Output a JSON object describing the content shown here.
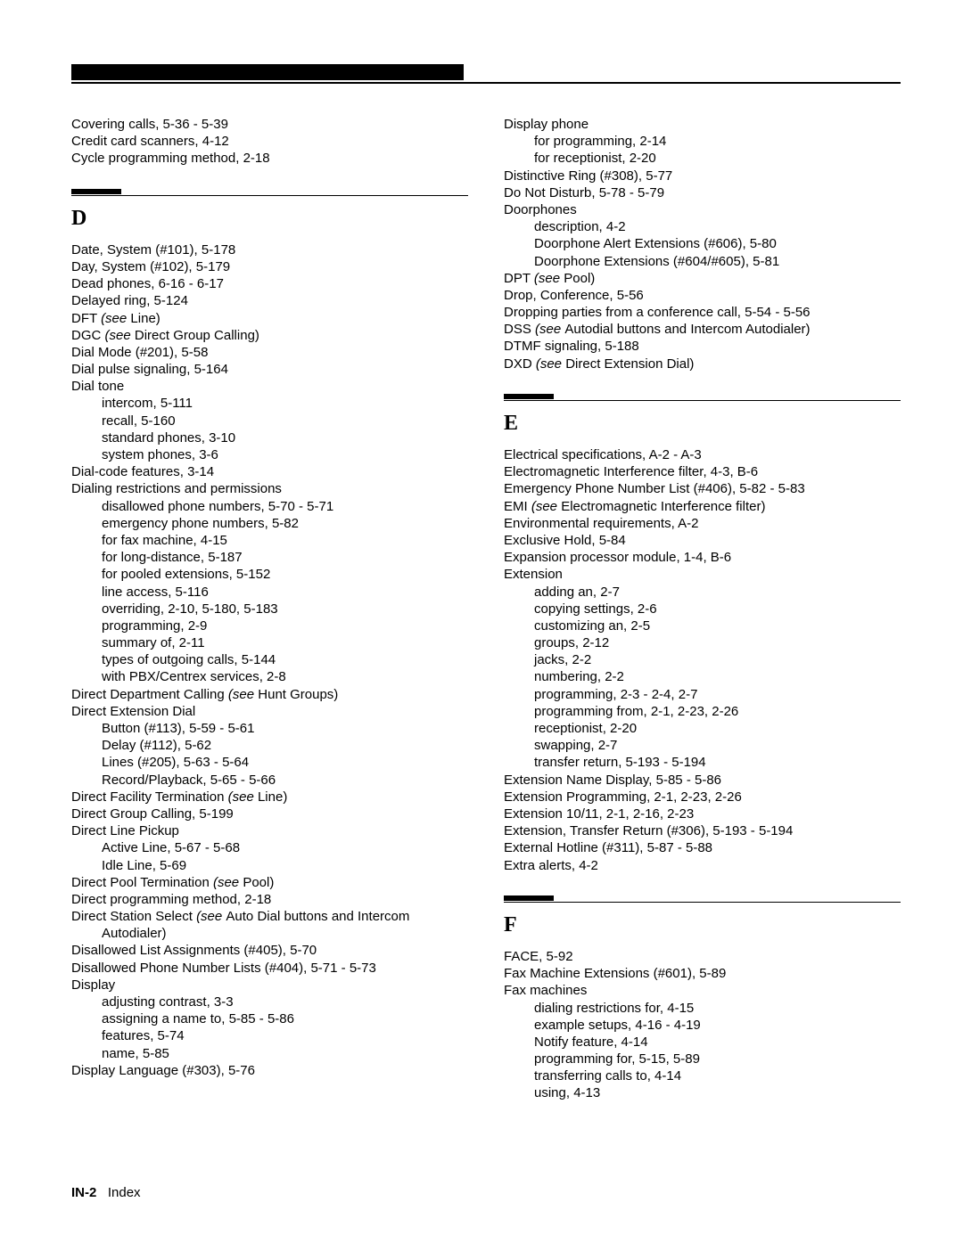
{
  "left": {
    "intro": [
      "Covering calls, 5-36 - 5-39",
      "Credit card scanners, 4-12",
      "Cycle programming method, 2-18"
    ],
    "section_letter": "D",
    "entries": [
      {
        "t": "Date, System (#101), 5-178"
      },
      {
        "t": "Day, System (#102), 5-179"
      },
      {
        "t": "Dead phones, 6-16 - 6-17"
      },
      {
        "t": "Delayed ring, 5-124"
      },
      {
        "t": "DFT ",
        "i": "(see ",
        "after": "Line)"
      },
      {
        "t": "DGC ",
        "i": "(see ",
        "after": "Direct Group Calling)"
      },
      {
        "t": "Dial Mode (#201), 5-58"
      },
      {
        "t": "Dial pulse signaling, 5-164"
      },
      {
        "t": "Dial tone"
      },
      {
        "s": "intercom, 5-111"
      },
      {
        "s": "recall, 5-160"
      },
      {
        "s": "standard phones, 3-10"
      },
      {
        "s": "system phones, 3-6"
      },
      {
        "t": "Dial-code features, 3-14"
      },
      {
        "t": "Dialing restrictions and permissions"
      },
      {
        "s": "disallowed phone numbers, 5-70 - 5-71"
      },
      {
        "s": "emergency phone numbers, 5-82"
      },
      {
        "s": "for fax machine, 4-15"
      },
      {
        "s": "for long-distance, 5-187"
      },
      {
        "s": "for pooled extensions, 5-152"
      },
      {
        "s": "line access, 5-116"
      },
      {
        "s": "overriding, 2-10, 5-180, 5-183"
      },
      {
        "s": "programming, 2-9"
      },
      {
        "s": "summary of, 2-11"
      },
      {
        "s": "types of outgoing calls, 5-144"
      },
      {
        "s": "with PBX/Centrex services, 2-8"
      },
      {
        "t": "Direct Department Calling ",
        "i": "(see ",
        "after": "Hunt Groups)"
      },
      {
        "t": "Direct Extension Dial"
      },
      {
        "s": "Button (#113), 5-59 - 5-61"
      },
      {
        "s": "Delay (#112), 5-62"
      },
      {
        "s": "Lines (#205), 5-63 - 5-64"
      },
      {
        "s": "Record/Playback, 5-65 - 5-66"
      },
      {
        "t": "Direct Facility Termination ",
        "i": "(see ",
        "after": "Line)"
      },
      {
        "t": "Direct Group Calling, 5-199"
      },
      {
        "t": "Direct Line Pickup"
      },
      {
        "s": "Active Line, 5-67 - 5-68"
      },
      {
        "s": "Idle Line, 5-69"
      },
      {
        "t": "Direct Pool Termination ",
        "i": "(see ",
        "after": "Pool)"
      },
      {
        "t": "Direct programming method, 2-18"
      },
      {
        "t": "Direct Station Select ",
        "i": "(see ",
        "after": "Auto Dial buttons and Intercom"
      },
      {
        "s": "Autodialer)"
      },
      {
        "t": "Disallowed List Assignments (#405), 5-70"
      },
      {
        "t": "Disallowed Phone Number Lists (#404), 5-71 - 5-73"
      },
      {
        "t": "Display"
      },
      {
        "s": "adjusting contrast, 3-3"
      },
      {
        "s": "assigning a name to, 5-85 - 5-86"
      },
      {
        "s": "features, 5-74"
      },
      {
        "s": "name, 5-85"
      },
      {
        "t": "Display Language (#303), 5-76"
      }
    ]
  },
  "right": {
    "intro_entries": [
      {
        "t": "Display phone"
      },
      {
        "s": "for programming, 2-14"
      },
      {
        "s": "for receptionist, 2-20"
      },
      {
        "t": "Distinctive Ring (#308), 5-77"
      },
      {
        "t": "Do Not Disturb, 5-78 - 5-79"
      },
      {
        "t": "Doorphones"
      },
      {
        "s": "description, 4-2"
      },
      {
        "s": "Doorphone Alert Extensions (#606), 5-80"
      },
      {
        "s": "Doorphone Extensions (#604/#605), 5-81"
      },
      {
        "t": "DPT ",
        "i": "(see ",
        "after": "Pool)"
      },
      {
        "t": "Drop, Conference, 5-56"
      },
      {
        "t": "Dropping parties from a conference call, 5-54 - 5-56"
      },
      {
        "t": "DSS ",
        "i": "(see ",
        "after": "Autodial buttons and Intercom Autodialer)"
      },
      {
        "t": "DTMF signaling, 5-188"
      },
      {
        "t": "DXD ",
        "i": "(see ",
        "after": "Direct Extension Dial)"
      }
    ],
    "sections": [
      {
        "letter": "E",
        "entries": [
          {
            "t": "Electrical specifications, A-2 - A-3"
          },
          {
            "t": "Electromagnetic Interference filter, 4-3, B-6"
          },
          {
            "t": "Emergency Phone Number List (#406), 5-82 - 5-83"
          },
          {
            "t": "EMI ",
            "i": "(see ",
            "after": "Electromagnetic Interference filter)"
          },
          {
            "t": "Environmental requirements, A-2"
          },
          {
            "t": "Exclusive Hold, 5-84"
          },
          {
            "t": "Expansion processor module, 1-4, B-6"
          },
          {
            "t": "Extension"
          },
          {
            "s": "adding an, 2-7"
          },
          {
            "s": "copying settings, 2-6"
          },
          {
            "s": "customizing an, 2-5"
          },
          {
            "s": "groups, 2-12"
          },
          {
            "s": "jacks, 2-2"
          },
          {
            "s": "numbering, 2-2"
          },
          {
            "s": "programming, 2-3 - 2-4, 2-7"
          },
          {
            "s": "programming from, 2-1, 2-23, 2-26"
          },
          {
            "s": "receptionist, 2-20"
          },
          {
            "s": "swapping, 2-7"
          },
          {
            "s": "transfer return, 5-193 - 5-194"
          },
          {
            "t": "Extension Name Display, 5-85 - 5-86"
          },
          {
            "t": "Extension Programming, 2-1, 2-23, 2-26"
          },
          {
            "t": "Extension 10/11, 2-1, 2-16, 2-23"
          },
          {
            "t": "Extension, Transfer Return (#306), 5-193 - 5-194"
          },
          {
            "t": "External Hotline (#311), 5-87 - 5-88"
          },
          {
            "t": "Extra alerts, 4-2"
          }
        ]
      },
      {
        "letter": "F",
        "entries": [
          {
            "t": "FACE, 5-92"
          },
          {
            "t": "Fax Machine Extensions (#601), 5-89"
          },
          {
            "t": "Fax machines"
          },
          {
            "s": "dialing restrictions for, 4-15"
          },
          {
            "s": "example setups, 4-16 - 4-19"
          },
          {
            "s": "Notify feature, 4-14"
          },
          {
            "s": "programming for, 5-15, 5-89"
          },
          {
            "s": "transferring calls to, 4-14"
          },
          {
            "s": "using, 4-13"
          }
        ]
      }
    ]
  },
  "footer": {
    "page": "IN-2",
    "label": "Index"
  }
}
